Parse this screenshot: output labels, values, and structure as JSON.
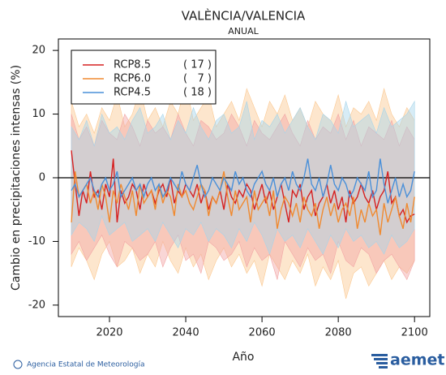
{
  "chart_data": {
    "type": "line",
    "title": "VALÈNCIA/VALENCIA",
    "subtitle": "ANUAL",
    "y_label": "Cambio en precipitaciones intensas (%)",
    "x_label": "Año",
    "xlim": [
      2006.6,
      2104
    ],
    "ylim": [
      -21.8,
      21.8
    ],
    "xticks": [
      2020,
      2040,
      2060,
      2080,
      2100
    ],
    "yticks": [
      -20,
      -10,
      0,
      10,
      20
    ],
    "hline": 0,
    "x": [
      2010,
      2011,
      2012,
      2013,
      2014,
      2015,
      2016,
      2017,
      2018,
      2019,
      2020,
      2021,
      2022,
      2023,
      2024,
      2025,
      2026,
      2027,
      2028,
      2029,
      2030,
      2031,
      2032,
      2033,
      2034,
      2035,
      2036,
      2037,
      2038,
      2039,
      2040,
      2041,
      2042,
      2043,
      2044,
      2045,
      2046,
      2047,
      2048,
      2049,
      2050,
      2051,
      2052,
      2053,
      2054,
      2055,
      2056,
      2057,
      2058,
      2059,
      2060,
      2061,
      2062,
      2063,
      2064,
      2065,
      2066,
      2067,
      2068,
      2069,
      2070,
      2071,
      2072,
      2073,
      2074,
      2075,
      2076,
      2077,
      2078,
      2079,
      2080,
      2081,
      2082,
      2083,
      2084,
      2085,
      2086,
      2087,
      2088,
      2089,
      2090,
      2091,
      2092,
      2093,
      2094,
      2095,
      2096,
      2097,
      2098,
      2099,
      2100
    ],
    "band_x": [
      2010,
      2012,
      2014,
      2016,
      2018,
      2020,
      2022,
      2024,
      2026,
      2028,
      2030,
      2032,
      2034,
      2036,
      2038,
      2040,
      2042,
      2044,
      2046,
      2048,
      2050,
      2052,
      2054,
      2056,
      2058,
      2060,
      2062,
      2064,
      2066,
      2068,
      2070,
      2072,
      2074,
      2076,
      2078,
      2080,
      2082,
      2084,
      2086,
      2088,
      2090,
      2092,
      2094,
      2096,
      2098,
      2100
    ],
    "series": [
      {
        "name": "RCP8.5",
        "models": "( 17 )",
        "color": "#d62020",
        "band_color": "#f2a4a4",
        "values": [
          4.3,
          -1,
          -6,
          -2,
          -4,
          1,
          -3,
          -2,
          -5,
          -1,
          -3,
          3,
          -7,
          -2,
          -4,
          -3,
          -1,
          -2,
          -5,
          -1,
          -3,
          -2,
          -4,
          -2,
          -1,
          -3,
          0,
          -4,
          -2,
          -3,
          -1,
          -2,
          -3,
          -1,
          -4,
          -2,
          -5,
          -3,
          -4,
          -2,
          -5,
          -1,
          -3,
          -4,
          -2,
          -3,
          -1,
          -2,
          -5,
          -3,
          -1,
          -4,
          -2,
          -5,
          -3,
          -1,
          -4,
          -7,
          -2,
          -3,
          -1,
          -5,
          -3,
          -2,
          -6,
          -4,
          -3,
          -1,
          -4,
          -2,
          -5,
          -3,
          -7,
          -2,
          -4,
          -3,
          -1,
          -3,
          -4,
          -2,
          -5,
          -3,
          -2,
          1,
          -4,
          -3,
          -6,
          -5,
          -7,
          -6,
          -5.7
        ],
        "upper": [
          10,
          6,
          8,
          5,
          9,
          7,
          6,
          10,
          8,
          5,
          9,
          7,
          8,
          6,
          10,
          7,
          5,
          9,
          8,
          6,
          7,
          10,
          8,
          5,
          9,
          7,
          6,
          8,
          10,
          7,
          5,
          9,
          6,
          8,
          7,
          10,
          6,
          9,
          5,
          8,
          7,
          6,
          9,
          5,
          8,
          6
        ],
        "lower": [
          -12,
          -10,
          -13,
          -11,
          -9,
          -12,
          -14,
          -10,
          -11,
          -13,
          -12,
          -10,
          -14,
          -11,
          -9,
          -13,
          -12,
          -15,
          -10,
          -11,
          -13,
          -12,
          -10,
          -14,
          -11,
          -13,
          -12,
          -16,
          -10,
          -12,
          -14,
          -11,
          -13,
          -12,
          -15,
          -10,
          -13,
          -14,
          -11,
          -12,
          -15,
          -13,
          -12,
          -14,
          -16,
          -13
        ]
      },
      {
        "name": "RCP6.0",
        "models": "(   7 )",
        "color": "#f08a30",
        "band_color": "#fbc890",
        "values": [
          -7,
          1,
          -3,
          -2,
          -1,
          -4,
          -2,
          -5,
          -1,
          -3,
          -7,
          -2,
          -4,
          -1,
          -3,
          -5,
          -2,
          -6,
          -1,
          -4,
          -3,
          -2,
          -5,
          -1,
          -4,
          -2,
          -3,
          -6,
          -1,
          -3,
          -2,
          -4,
          -5,
          -3,
          -1,
          -2,
          -6,
          -3,
          -4,
          -2,
          1,
          -3,
          -6,
          -2,
          -5,
          -4,
          -3,
          -7,
          -2,
          -5,
          -4,
          -3,
          -6,
          -2,
          -8,
          -5,
          -3,
          -4,
          -6,
          -4,
          -7,
          -3,
          -5,
          -6,
          -4,
          -8,
          -5,
          -3,
          -6,
          -4,
          -7,
          -5,
          -4,
          -6,
          -3,
          -8,
          -5,
          -7,
          -4,
          -6,
          -5,
          -9,
          -4,
          -7,
          -5,
          -3,
          -6,
          -8,
          -4,
          -7,
          -3
        ],
        "upper": [
          12,
          8,
          10,
          7,
          11,
          9,
          13,
          8,
          10,
          14,
          9,
          11,
          8,
          12,
          10,
          15,
          9,
          11,
          13,
          8,
          10,
          12,
          9,
          14,
          11,
          8,
          12,
          10,
          13,
          9,
          11,
          8,
          12,
          10,
          9,
          13,
          8,
          11,
          10,
          12,
          9,
          14,
          10,
          8,
          11,
          9
        ],
        "lower": [
          -14,
          -11,
          -13,
          -16,
          -12,
          -10,
          -14,
          -13,
          -11,
          -15,
          -12,
          -14,
          -10,
          -13,
          -15,
          -11,
          -14,
          -12,
          -16,
          -13,
          -11,
          -14,
          -12,
          -15,
          -13,
          -17,
          -12,
          -14,
          -16,
          -13,
          -15,
          -12,
          -17,
          -14,
          -16,
          -13,
          -19,
          -15,
          -14,
          -17,
          -15,
          -13,
          -16,
          -14,
          -15,
          -13
        ]
      },
      {
        "name": "RCP4.5",
        "models": "( 18 )",
        "color": "#4a90d9",
        "band_color": "#a6d4ea",
        "values": [
          -2,
          -1,
          -3,
          -2,
          -1,
          0,
          -2,
          -3,
          -1,
          0,
          -2,
          -1,
          1,
          -3,
          -2,
          -1,
          0,
          -2,
          -1,
          -3,
          -1,
          0,
          -2,
          -1,
          -3,
          -2,
          0,
          -1,
          -2,
          1,
          -1,
          -2,
          0,
          2,
          -1,
          -3,
          -2,
          0,
          -1,
          -2,
          0,
          -1,
          -2,
          1,
          -1,
          0,
          -2,
          -3,
          -1,
          0,
          1,
          -1,
          -2,
          0,
          -3,
          -1,
          0,
          -2,
          1,
          -1,
          -2,
          0,
          3,
          -1,
          -2,
          0,
          -3,
          -1,
          2,
          -1,
          -2,
          0,
          -1,
          -3,
          -2,
          0,
          -1,
          -2,
          1,
          -3,
          -2,
          3,
          -1,
          -4,
          -2,
          0,
          -3,
          -1,
          -3,
          -2,
          1
        ],
        "upper": [
          8,
          6,
          9,
          5,
          10,
          7,
          8,
          6,
          9,
          11,
          7,
          8,
          10,
          6,
          9,
          7,
          11,
          8,
          6,
          9,
          10,
          7,
          8,
          12,
          6,
          9,
          8,
          10,
          7,
          9,
          11,
          8,
          6,
          10,
          9,
          7,
          12,
          8,
          9,
          10,
          7,
          11,
          8,
          9,
          10,
          12
        ],
        "lower": [
          -9,
          -7,
          -8,
          -10,
          -6,
          -9,
          -8,
          -7,
          -10,
          -9,
          -8,
          -10,
          -7,
          -9,
          -11,
          -8,
          -9,
          -7,
          -10,
          -8,
          -9,
          -11,
          -8,
          -10,
          -7,
          -9,
          -12,
          -8,
          -10,
          -9,
          -11,
          -8,
          -10,
          -12,
          -9,
          -11,
          -8,
          -10,
          -9,
          -11,
          -10,
          -12,
          -9,
          -11,
          -10,
          -8
        ]
      }
    ]
  },
  "footer": {
    "credit": "Agencia Estatal de Meteorología",
    "logo": "aemet"
  }
}
